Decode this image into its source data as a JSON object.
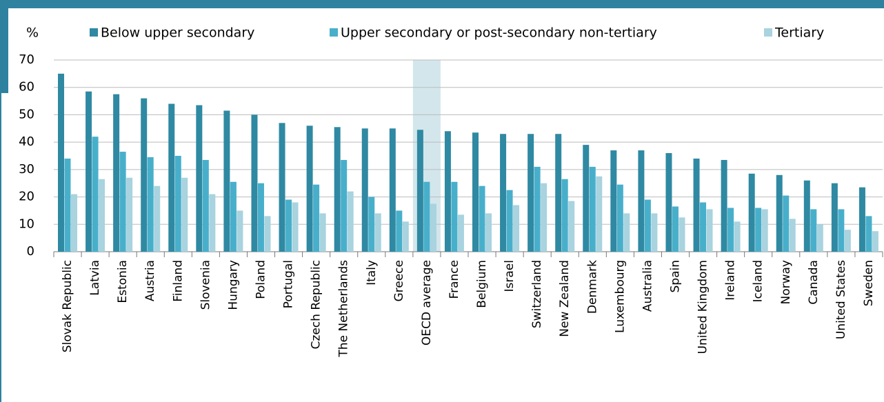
{
  "chart_data": {
    "type": "bar",
    "y_label": "%",
    "categories": [
      "Slovak Republic",
      "Latvia",
      "Estonia",
      "Austria",
      "Finland",
      "Slovenia",
      "Hungary",
      "Poland",
      "Portugal",
      "Czech Republic",
      "The Netherlands",
      "Italy",
      "Greece",
      "OECD average",
      "France",
      "Belgium",
      "Israel",
      "Switzerland",
      "New Zealand",
      "Denmark",
      "Luxembourg",
      "Australia",
      "Spain",
      "United Kingdom",
      "Ireland",
      "Iceland",
      "Norway",
      "Canada",
      "United States",
      "Sweden"
    ],
    "series": [
      {
        "name": "Below upper secondary",
        "color": "#2f89a2",
        "values": [
          65,
          58.5,
          57.5,
          56,
          54,
          53.5,
          51.5,
          50,
          47,
          46,
          45.5,
          45,
          45,
          44.5,
          44,
          43.5,
          43,
          43,
          43,
          39,
          37,
          37,
          36,
          34,
          33.5,
          28.5,
          28,
          26,
          25,
          23.5
        ]
      },
      {
        "name": "Upper secondary or post-secondary non-tertiary",
        "color": "#48afcb",
        "values": [
          34,
          42,
          36.5,
          34.5,
          35,
          33.5,
          25.5,
          25,
          19,
          24.5,
          33.5,
          20,
          15,
          25.5,
          25.5,
          24,
          22.5,
          31,
          26.5,
          31,
          24.5,
          19,
          16.5,
          18,
          16,
          16,
          20.5,
          15.5,
          15.5,
          13
        ]
      },
      {
        "name": "Tertiary",
        "color": "#a8d3df",
        "values": [
          21,
          26.5,
          27,
          24,
          27,
          21,
          15,
          13,
          18,
          14,
          22,
          14,
          11,
          17.5,
          13.5,
          14,
          17,
          25,
          18.5,
          27.5,
          14,
          14,
          12.5,
          15.5,
          11,
          15.5,
          12,
          10,
          8,
          7.5
        ]
      }
    ],
    "highlight": "OECD average",
    "highlight_color": "#d3e6ec",
    "ylim": [
      0,
      70
    ],
    "yticks": [
      0,
      10,
      20,
      30,
      40,
      50,
      60,
      70
    ],
    "grid": true
  }
}
